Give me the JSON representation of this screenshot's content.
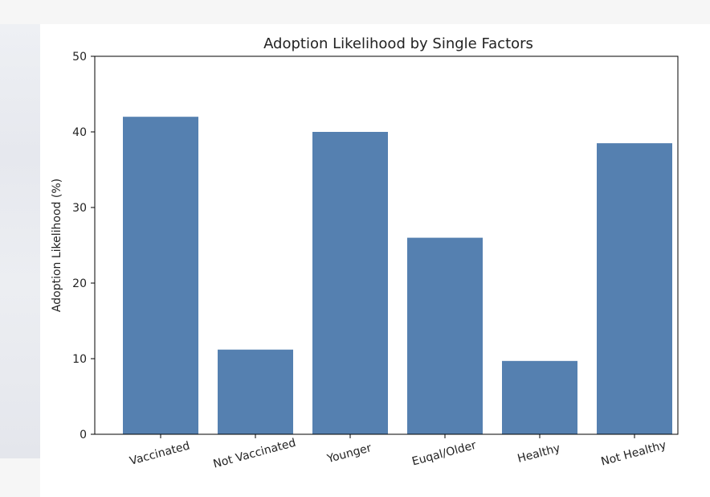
{
  "chart_data": {
    "type": "bar",
    "title": "Adoption Likelihood by Single Factors",
    "xlabel": "",
    "ylabel": "Adoption Likelihood (%)",
    "categories": [
      "Vaccinated",
      "Not Vaccinated",
      "Younger",
      "Euqal/Older",
      "Healthy",
      "Not Healthy"
    ],
    "values": [
      42,
      11.2,
      40,
      26,
      9.7,
      38.5
    ],
    "ylim": [
      0,
      50
    ],
    "yticks": [
      0,
      10,
      20,
      30,
      40,
      50
    ],
    "grid": false,
    "bar_color": "#5580b0"
  }
}
